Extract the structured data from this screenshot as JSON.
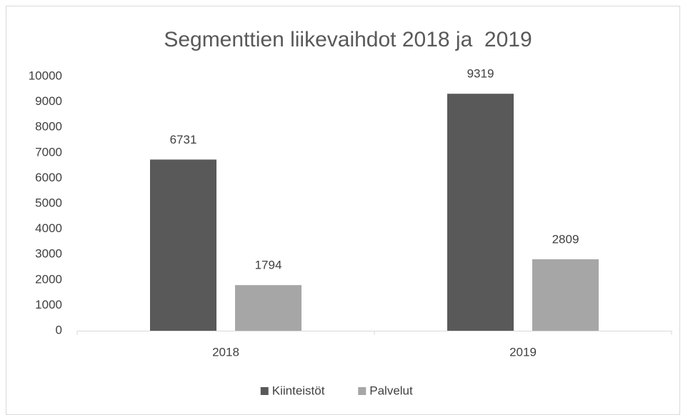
{
  "chart_data": {
    "type": "bar",
    "title": "Segmenttien liikevaihdot 2018 ja  2019",
    "categories": [
      "2018",
      "2019"
    ],
    "series": [
      {
        "name": "Kiinteistöt",
        "color": "#595959",
        "values": [
          6731,
          9319
        ]
      },
      {
        "name": "Palvelut",
        "color": "#a6a6a6",
        "values": [
          1794,
          2809
        ]
      }
    ],
    "ylim": [
      0,
      10000
    ],
    "yticks": [
      0,
      1000,
      2000,
      3000,
      4000,
      5000,
      6000,
      7000,
      8000,
      9000,
      10000
    ],
    "grid": false,
    "legend": "bottom"
  }
}
